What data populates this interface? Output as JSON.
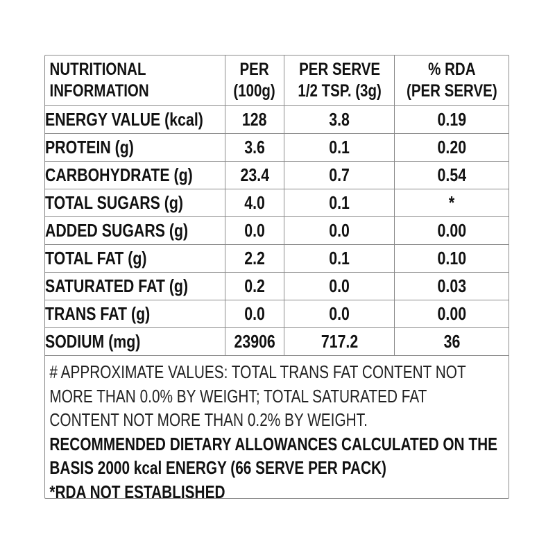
{
  "table": {
    "headers": [
      [
        "NUTRITIONAL",
        "INFORMATION"
      ],
      [
        "PER",
        "(100g)"
      ],
      [
        "PER SERVE",
        "1/2 TSP. (3g)"
      ],
      [
        "% RDA",
        "(PER SERVE)"
      ]
    ],
    "rows": [
      [
        "ENERGY VALUE (kcal)",
        "128",
        "3.8",
        "0.19"
      ],
      [
        "PROTEIN (g)",
        "3.6",
        "0.1",
        "0.20"
      ],
      [
        "CARBOHYDRATE (g)",
        "23.4",
        "0.7",
        "0.54"
      ],
      [
        "TOTAL SUGARS (g)",
        "4.0",
        "0.1",
        "*"
      ],
      [
        "ADDED SUGARS (g)",
        "0.0",
        "0.0",
        "0.00"
      ],
      [
        "TOTAL FAT (g)",
        "2.2",
        "0.1",
        "0.10"
      ],
      [
        "SATURATED FAT (g)",
        "0.2",
        "0.0",
        "0.03"
      ],
      [
        "TRANS FAT (g)",
        "0.0",
        "0.0",
        "0.00"
      ],
      [
        "SODIUM (mg)",
        "23906",
        "717.2",
        "36"
      ]
    ]
  },
  "notes": {
    "approx_lines": [
      "# APPROXIMATE VALUES: TOTAL TRANS FAT CONTENT NOT",
      "MORE THAN 0.0% BY WEIGHT; TOTAL SATURATED FAT",
      "CONTENT NOT MORE THAN 0.2% BY WEIGHT."
    ],
    "rda_lines": [
      "RECOMMENDED DIETARY ALLOWANCES CALCULATED ON THE",
      "BASIS 2000 kcal ENERGY (66 SERVE PER PACK)"
    ],
    "not_established": "*RDA NOT ESTABLISHED"
  },
  "colors": {
    "text": "#111111",
    "border": "#8a8a8a",
    "background": "#ffffff"
  }
}
